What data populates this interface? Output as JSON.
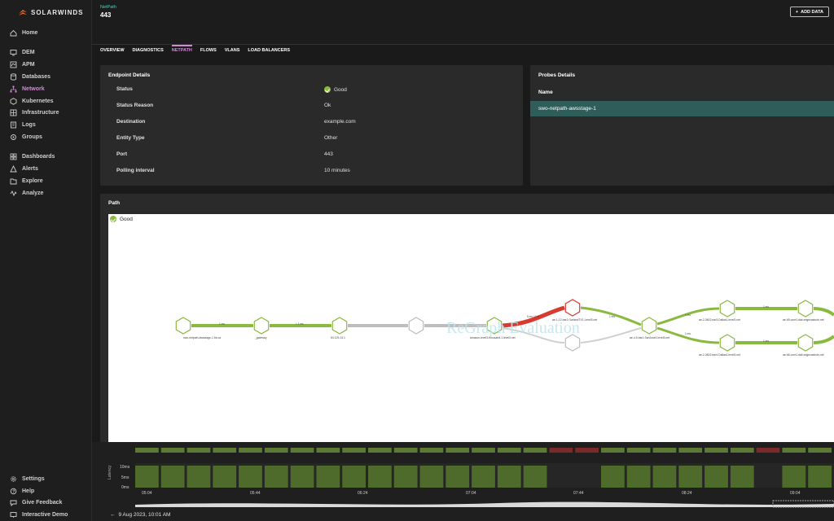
{
  "brand": {
    "name": "SOLARWINDS",
    "accent": "#f26522"
  },
  "sidebar": {
    "top_items": [
      {
        "label": "Home",
        "icon": "home-icon"
      },
      {
        "label": "DEM",
        "icon": "monitor-icon"
      },
      {
        "label": "APM",
        "icon": "apm-icon"
      },
      {
        "label": "Databases",
        "icon": "database-icon"
      },
      {
        "label": "Network",
        "icon": "network-icon",
        "active": true
      },
      {
        "label": "Kubernetes",
        "icon": "kubernetes-icon"
      },
      {
        "label": "Infrastructure",
        "icon": "infrastructure-icon"
      },
      {
        "label": "Logs",
        "icon": "logs-icon"
      },
      {
        "label": "Groups",
        "icon": "groups-icon"
      },
      {
        "label": "Dashboards",
        "icon": "dashboards-icon"
      },
      {
        "label": "Alerts",
        "icon": "alerts-icon"
      },
      {
        "label": "Explore",
        "icon": "explore-icon"
      },
      {
        "label": "Analyze",
        "icon": "analyze-icon"
      }
    ],
    "bottom_items": [
      {
        "label": "Settings",
        "icon": "gear-icon"
      },
      {
        "label": "Help",
        "icon": "help-icon"
      },
      {
        "label": "Give Feedback",
        "icon": "feedback-icon"
      },
      {
        "label": "Interactive Demo",
        "icon": "demo-icon"
      }
    ]
  },
  "header": {
    "breadcrumb": "NetPath",
    "title": "443",
    "add_data": "ADD DATA"
  },
  "tabs": [
    "OVERVIEW",
    "DIAGNOSTICS",
    "NETPATH",
    "FLOWS",
    "VLANS",
    "LOAD BALANCERS"
  ],
  "active_tab": "NETPATH",
  "endpoint": {
    "title": "Endpoint Details",
    "rows": [
      {
        "label": "Status",
        "value": "Good"
      },
      {
        "label": "Status Reason",
        "value": "Ok"
      },
      {
        "label": "Destination",
        "value": "example.com"
      },
      {
        "label": "Entity Type",
        "value": "Other"
      },
      {
        "label": "Port",
        "value": "443"
      },
      {
        "label": "Polling interval",
        "value": "10 minutes"
      }
    ]
  },
  "probes": {
    "title": "Probes Details",
    "column": "Name",
    "rows": [
      "swo-netpath-awsstage-1"
    ]
  },
  "path": {
    "title": "Path",
    "status": "Good",
    "watermark": "ReGraph Evaluation",
    "nodes": [
      "swo-netpath-awsstage-1.bk.ca",
      "_gateway",
      "64.129.14.1",
      "",
      "amazon-level3-thousand-1.level3.net",
      "ae-1-12.bar2.GarlandTX1.Level3.net",
      "",
      "ae-4-5.bar1.SanJose1.level3.net",
      "ae-2-3602.ear3.Dallas1.level3.net",
      "ae-65.core1.dab.edgecastcdn.net",
      "ae-2-3602.ear4.Dallas1.level3.net",
      "ae-66.core1.dab.edgecastcdn.net"
    ],
    "link_labels": [
      "1 ms",
      "< 1 ms",
      "5 ms / 0 %",
      "1 ms",
      "1 ms",
      "1 ms",
      "1 ms",
      "1 ms"
    ],
    "colors": {
      "good": "#8ab93f",
      "bad": "#d93a2f",
      "unknown": "#bdbdbd"
    }
  },
  "timeline": {
    "latency_label": "Latency",
    "y_ticks": [
      "10ms",
      "5ms",
      "0ms"
    ],
    "x_ticks": [
      "05:04",
      "05:44",
      "06:24",
      "07:04",
      "07:44",
      "08:24",
      "09:04"
    ],
    "status": [
      "good",
      "good",
      "good",
      "good",
      "good",
      "good",
      "good",
      "good",
      "good",
      "good",
      "good",
      "good",
      "good",
      "good",
      "good",
      "good",
      "bad",
      "bad",
      "good",
      "good",
      "good",
      "good",
      "good",
      "good",
      "bad",
      "good",
      "good"
    ],
    "latency": [
      9,
      9,
      9,
      9,
      9,
      9,
      9,
      9,
      9,
      9,
      9,
      9,
      9,
      9,
      9,
      9,
      0,
      0,
      9,
      9,
      9,
      9,
      9,
      9,
      0,
      9,
      9
    ],
    "date": "9 Aug 2023, 10:01 AM"
  }
}
